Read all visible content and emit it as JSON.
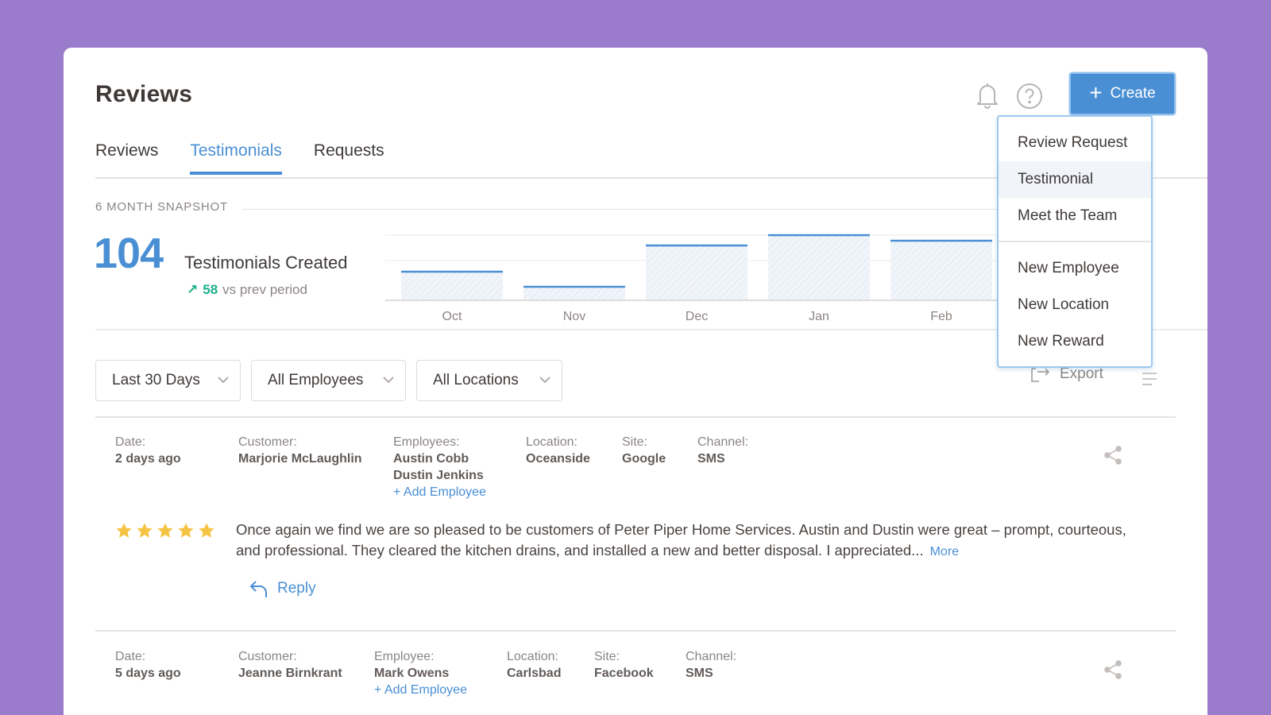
{
  "header": {
    "title": "Reviews",
    "create_label": "Create",
    "bell_icon": "bell-icon",
    "help_icon": "help-icon"
  },
  "tabs": [
    {
      "label": "Reviews",
      "active": false
    },
    {
      "label": "Testimonials",
      "active": true
    },
    {
      "label": "Requests",
      "active": false
    }
  ],
  "snapshot": {
    "label": "6 MONTH SNAPSHOT",
    "total": "104",
    "total_label": "Testimonials Created",
    "delta": "58",
    "delta_label": "vs prev period"
  },
  "chart_data": {
    "type": "bar",
    "categories": [
      "Oct",
      "Nov",
      "Dec",
      "Jan",
      "Feb"
    ],
    "values": [
      36,
      17,
      69,
      82,
      75
    ],
    "ylim": [
      0,
      100
    ],
    "grid": true,
    "colors": {
      "bar_line": "#4a8fd4",
      "bar_fill": "#eef3f9"
    }
  },
  "filters": {
    "date": "Last 30 Days",
    "employees": "All Employees",
    "locations": "All Locations",
    "export_label": "Export"
  },
  "testimonials": [
    {
      "date_label": "Date:",
      "date": "2 days ago",
      "customer_label": "Customer:",
      "customer": "Marjorie McLaughlin",
      "employees_label": "Employees:",
      "employees": [
        "Austin Cobb",
        "Dustin Jenkins"
      ],
      "add_employee": "+ Add Employee",
      "location_label": "Location:",
      "location": "Oceanside",
      "site_label": "Site:",
      "site": "Google",
      "channel_label": "Channel:",
      "channel": "SMS",
      "rating": 5,
      "text": "Once again we find we are so pleased to be customers of Peter Piper Home Services. Austin and Dustin were great – prompt, courteous, and professional. They cleared the kitchen drains, and installed a new and better disposal. I appreciated...",
      "more_label": "More",
      "reply_label": "Reply"
    },
    {
      "date_label": "Date:",
      "date": "5 days ago",
      "customer_label": "Customer:",
      "customer": "Jeanne Birnkrant",
      "employees_label": "Employee:",
      "employees": [
        "Mark Owens"
      ],
      "add_employee": "+ Add Employee",
      "location_label": "Location:",
      "location": "Carlsbad",
      "site_label": "Site:",
      "site": "Facebook",
      "channel_label": "Channel:",
      "channel": "SMS"
    }
  ],
  "create_menu": {
    "items_top": [
      "Review Request",
      "Testimonial",
      "Meet the Team"
    ],
    "items_bottom": [
      "New Employee",
      "New Location",
      "New Reward"
    ],
    "highlighted": "Testimonial"
  },
  "colors": {
    "accent": "#4a8fd4",
    "positive": "#1ab08a",
    "star": "#f6c445",
    "background": "#9b7bcc"
  }
}
